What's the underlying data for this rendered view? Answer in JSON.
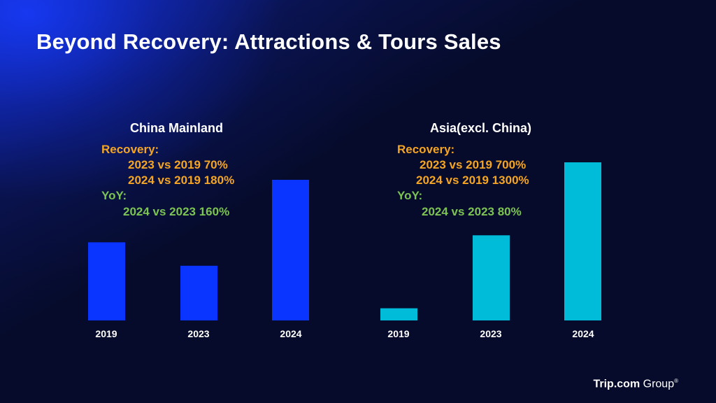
{
  "title": "Beyond Recovery: Attractions & Tours Sales",
  "panels": [
    {
      "title": "China Mainland",
      "recovery_label": "Recovery:",
      "recovery_lines": [
        "2023 vs 2019 70%",
        "2024 vs 2019 180%"
      ],
      "yoy_label": "YoY:",
      "yoy_lines": [
        "2024 vs 2023 160%"
      ]
    },
    {
      "title": "Asia(excl. China)",
      "recovery_label": "Recovery:",
      "recovery_lines": [
        "2023 vs 2019 700%",
        "2024 vs 2019 1300%"
      ],
      "yoy_label": "YoY:",
      "yoy_lines": [
        "2024 vs 2023 80%"
      ]
    }
  ],
  "chart_data": [
    {
      "type": "bar",
      "title": "China Mainland",
      "categories": [
        "2019",
        "2023",
        "2024"
      ],
      "values": [
        100,
        70,
        180
      ],
      "color": "#0a34ff",
      "ylim": [
        0,
        180
      ],
      "grid": false
    },
    {
      "type": "bar",
      "title": "Asia(excl. China)",
      "categories": [
        "2019",
        "2023",
        "2024"
      ],
      "values": [
        100,
        700,
        1300
      ],
      "color": "#00bcd9",
      "ylim": [
        0,
        1300
      ],
      "grid": false
    }
  ],
  "brand": {
    "name_bold": "Trip.com",
    "name_rest": " Group",
    "mark": "®"
  }
}
